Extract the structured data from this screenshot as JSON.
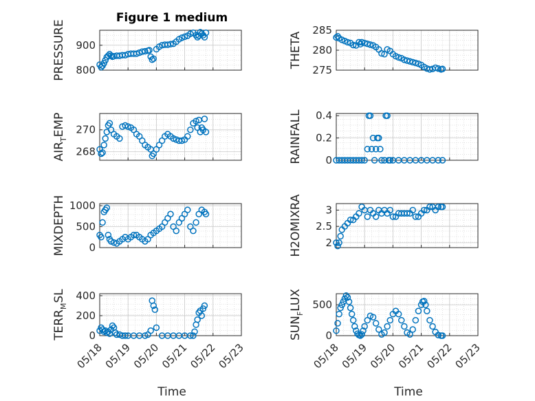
{
  "figure": {
    "title": "Figure 1 medium",
    "xlabel": "Time",
    "date_ticks": [
      "05/18",
      "05/19",
      "05/20",
      "05/21",
      "05/22",
      "05/23"
    ],
    "marker_color": "#0072BD"
  },
  "chart_data": [
    {
      "type": "scatter",
      "title": "Figure 1 medium",
      "ylabel": "PRESSURE",
      "ylabel_sub": "",
      "xlim": [
        0,
        5
      ],
      "ylim": [
        800,
        960
      ],
      "yticks": [
        800,
        900
      ],
      "grid": true,
      "x": [
        0.0,
        0.05,
        0.1,
        0.15,
        0.2,
        0.25,
        0.3,
        0.35,
        0.4,
        0.45,
        0.5,
        0.6,
        0.7,
        0.8,
        0.9,
        1.0,
        1.1,
        1.2,
        1.3,
        1.4,
        1.5,
        1.6,
        1.7,
        1.75,
        1.8,
        1.85,
        1.9,
        2.0,
        2.1,
        2.2,
        2.3,
        2.4,
        2.5,
        2.6,
        2.7,
        2.8,
        2.9,
        3.0,
        3.1,
        3.2,
        3.3,
        3.4,
        3.45,
        3.5,
        3.55,
        3.6,
        3.65,
        3.7,
        3.75
      ],
      "y": [
        822,
        812,
        818,
        828,
        840,
        852,
        858,
        864,
        858,
        854,
        856,
        858,
        858,
        860,
        860,
        864,
        866,
        866,
        866,
        870,
        874,
        876,
        878,
        880,
        854,
        842,
        846,
        884,
        894,
        900,
        902,
        902,
        904,
        906,
        914,
        924,
        930,
        934,
        938,
        946,
        950,
        940,
        932,
        938,
        952,
        946,
        940,
        932,
        950
      ]
    },
    {
      "type": "scatter",
      "title": "",
      "ylabel": "THETA",
      "ylabel_sub": "",
      "xlim": [
        0,
        5
      ],
      "ylim": [
        275,
        285
      ],
      "yticks": [
        275,
        280,
        285
      ],
      "grid": true,
      "x": [
        0.0,
        0.05,
        0.1,
        0.2,
        0.3,
        0.4,
        0.5,
        0.6,
        0.7,
        0.8,
        0.85,
        0.9,
        1.0,
        1.1,
        1.2,
        1.3,
        1.4,
        1.5,
        1.6,
        1.7,
        1.8,
        1.9,
        2.0,
        2.1,
        2.2,
        2.3,
        2.4,
        2.5,
        2.6,
        2.7,
        2.8,
        2.9,
        3.0,
        3.1,
        3.2,
        3.3,
        3.4,
        3.5,
        3.6,
        3.7,
        3.75
      ],
      "y": [
        283.2,
        283.5,
        283,
        282.6,
        282.3,
        282,
        281.8,
        281.3,
        281.2,
        282,
        281.5,
        282,
        281.8,
        281.6,
        281.4,
        281.2,
        280.8,
        280.2,
        279.2,
        279,
        280.2,
        279.8,
        279,
        278.5,
        278.2,
        278,
        277.6,
        277.4,
        277.2,
        277,
        276.8,
        276.6,
        276.3,
        275.8,
        275.4,
        275.2,
        275.3,
        275.6,
        275.4,
        275.2,
        275.3
      ]
    },
    {
      "type": "scatter",
      "title": "",
      "ylabel": "AIR",
      "ylabel_sub": "T",
      "ylabel_suffix": "EMP",
      "xlim": [
        0,
        5
      ],
      "ylim": [
        267.2,
        271.5
      ],
      "yticks": [
        268,
        270
      ],
      "grid": true,
      "x": [
        0.0,
        0.05,
        0.1,
        0.15,
        0.2,
        0.25,
        0.3,
        0.35,
        0.4,
        0.5,
        0.6,
        0.7,
        0.8,
        0.9,
        1.0,
        1.1,
        1.2,
        1.3,
        1.4,
        1.5,
        1.6,
        1.7,
        1.8,
        1.85,
        1.9,
        2.0,
        2.1,
        2.2,
        2.3,
        2.4,
        2.5,
        2.6,
        2.7,
        2.8,
        2.9,
        3.0,
        3.1,
        3.2,
        3.3,
        3.4,
        3.45,
        3.5,
        3.55,
        3.6,
        3.65,
        3.7,
        3.75
      ],
      "y": [
        268.2,
        267.8,
        267.9,
        268.6,
        269.2,
        269.8,
        270.4,
        270.6,
        270,
        269.6,
        269.4,
        269.2,
        270.3,
        270.4,
        270.3,
        270.2,
        270,
        269.6,
        269.4,
        269,
        268.6,
        268.4,
        268.2,
        267.6,
        267.8,
        268.2,
        268.6,
        269,
        269.4,
        269.6,
        269.4,
        269.2,
        269.1,
        269,
        269,
        269.1,
        269.4,
        270,
        270.6,
        270.8,
        270.2,
        270.9,
        269.8,
        270.2,
        270,
        271,
        269.8
      ]
    },
    {
      "type": "scatter",
      "title": "",
      "ylabel": "RAINFALL",
      "ylabel_sub": "",
      "xlim": [
        0,
        5
      ],
      "ylim": [
        0,
        0.42
      ],
      "yticks": [
        0,
        0.2,
        0.4
      ],
      "grid": true,
      "x": [
        0.0,
        0.1,
        0.2,
        0.3,
        0.4,
        0.5,
        0.6,
        0.7,
        0.8,
        0.9,
        1.0,
        1.1,
        1.15,
        1.2,
        1.25,
        1.3,
        1.35,
        1.4,
        1.45,
        1.5,
        1.55,
        1.6,
        1.7,
        1.75,
        1.8,
        1.85,
        1.9,
        2.0,
        2.2,
        2.4,
        2.6,
        2.8,
        3.0,
        3.2,
        3.4,
        3.6,
        3.75
      ],
      "y": [
        0,
        0,
        0,
        0,
        0,
        0,
        0,
        0,
        0,
        0,
        0,
        0.1,
        0.4,
        0.4,
        0.1,
        0.2,
        0,
        0.1,
        0.2,
        0.2,
        0.1,
        0,
        0,
        0.4,
        0.4,
        0,
        0,
        0,
        0,
        0,
        0,
        0,
        0,
        0,
        0,
        0,
        0
      ]
    },
    {
      "type": "scatter",
      "title": "",
      "ylabel": "MIXDEPTH",
      "ylabel_sub": "",
      "xlim": [
        0,
        5
      ],
      "ylim": [
        0,
        1050
      ],
      "yticks": [
        0,
        500,
        1000
      ],
      "grid": true,
      "x": [
        0.0,
        0.05,
        0.1,
        0.15,
        0.2,
        0.25,
        0.3,
        0.35,
        0.4,
        0.5,
        0.6,
        0.7,
        0.8,
        0.9,
        1.0,
        1.1,
        1.2,
        1.3,
        1.4,
        1.5,
        1.6,
        1.7,
        1.8,
        1.9,
        2.0,
        2.1,
        2.2,
        2.3,
        2.4,
        2.5,
        2.6,
        2.7,
        2.8,
        2.9,
        3.0,
        3.1,
        3.2,
        3.3,
        3.4,
        3.5,
        3.6,
        3.7,
        3.75
      ],
      "y": [
        300,
        250,
        600,
        850,
        900,
        950,
        300,
        200,
        150,
        120,
        100,
        150,
        200,
        250,
        200,
        250,
        300,
        300,
        250,
        200,
        150,
        200,
        300,
        350,
        400,
        450,
        500,
        600,
        700,
        800,
        500,
        400,
        600,
        700,
        800,
        900,
        500,
        400,
        600,
        800,
        900,
        850,
        800
      ]
    },
    {
      "type": "scatter",
      "title": "",
      "ylabel": "H2OMIXRA",
      "ylabel_sub": "",
      "xlim": [
        0,
        5
      ],
      "ylim": [
        1.85,
        3.2
      ],
      "yticks": [
        2,
        2.5,
        3
      ],
      "grid": true,
      "x": [
        0.0,
        0.05,
        0.1,
        0.15,
        0.2,
        0.3,
        0.4,
        0.5,
        0.6,
        0.7,
        0.8,
        0.9,
        1.0,
        1.1,
        1.2,
        1.3,
        1.4,
        1.5,
        1.6,
        1.7,
        1.8,
        1.9,
        2.0,
        2.1,
        2.2,
        2.3,
        2.4,
        2.5,
        2.6,
        2.7,
        2.8,
        2.9,
        3.0,
        3.1,
        3.2,
        3.3,
        3.4,
        3.5,
        3.6,
        3.7,
        3.75
      ],
      "y": [
        2.0,
        1.9,
        2.0,
        2.2,
        2.4,
        2.5,
        2.6,
        2.7,
        2.7,
        2.8,
        2.9,
        3.1,
        3.0,
        2.8,
        3.0,
        2.9,
        2.8,
        3.0,
        2.9,
        3.0,
        2.9,
        3.0,
        2.8,
        2.8,
        2.9,
        2.9,
        2.9,
        2.9,
        2.9,
        3.0,
        2.8,
        2.8,
        2.9,
        3.0,
        3.0,
        3.1,
        3.1,
        3.0,
        3.1,
        3.1,
        3.1
      ]
    },
    {
      "type": "scatter",
      "title": "",
      "ylabel": "TERR",
      "ylabel_sub": "M",
      "ylabel_suffix": "SL",
      "xlim": [
        0,
        5
      ],
      "ylim": [
        0,
        420
      ],
      "yticks": [
        0,
        200,
        400
      ],
      "grid": true,
      "x": [
        0.0,
        0.05,
        0.1,
        0.15,
        0.2,
        0.25,
        0.3,
        0.35,
        0.4,
        0.45,
        0.5,
        0.55,
        0.6,
        0.7,
        0.8,
        0.9,
        1.0,
        1.2,
        1.4,
        1.6,
        1.7,
        1.8,
        1.85,
        1.9,
        1.95,
        2.0,
        2.2,
        2.4,
        2.6,
        2.8,
        3.0,
        3.2,
        3.3,
        3.35,
        3.4,
        3.45,
        3.5,
        3.55,
        3.6,
        3.65,
        3.7
      ],
      "y": [
        50,
        80,
        60,
        40,
        50,
        30,
        40,
        20,
        60,
        100,
        80,
        30,
        10,
        10,
        0,
        0,
        0,
        0,
        0,
        0,
        10,
        50,
        350,
        300,
        260,
        80,
        0,
        0,
        0,
        0,
        0,
        0,
        0,
        40,
        110,
        160,
        230,
        250,
        200,
        270,
        300
      ]
    },
    {
      "type": "scatter",
      "title": "",
      "ylabel": "SUN",
      "ylabel_sub": "F",
      "ylabel_suffix": "LUX",
      "xlim": [
        0,
        5
      ],
      "ylim": [
        0,
        680
      ],
      "yticks": [
        0,
        500
      ],
      "grid": true,
      "x": [
        0.0,
        0.05,
        0.1,
        0.15,
        0.2,
        0.25,
        0.3,
        0.35,
        0.4,
        0.45,
        0.5,
        0.55,
        0.6,
        0.65,
        0.7,
        0.75,
        0.8,
        0.85,
        0.9,
        0.95,
        1.0,
        1.1,
        1.2,
        1.3,
        1.4,
        1.5,
        1.6,
        1.7,
        1.8,
        1.9,
        2.0,
        2.1,
        2.2,
        2.3,
        2.4,
        2.5,
        2.6,
        2.7,
        2.8,
        2.9,
        3.0,
        3.05,
        3.1,
        3.15,
        3.2,
        3.3,
        3.4,
        3.5,
        3.6,
        3.7,
        3.75
      ],
      "y": [
        80,
        200,
        350,
        450,
        500,
        550,
        600,
        650,
        620,
        550,
        450,
        350,
        250,
        150,
        80,
        30,
        10,
        0,
        20,
        80,
        150,
        250,
        320,
        300,
        200,
        100,
        20,
        50,
        150,
        250,
        350,
        400,
        350,
        250,
        150,
        50,
        20,
        100,
        250,
        400,
        500,
        550,
        560,
        500,
        400,
        250,
        150,
        60,
        10,
        0,
        0
      ]
    }
  ]
}
